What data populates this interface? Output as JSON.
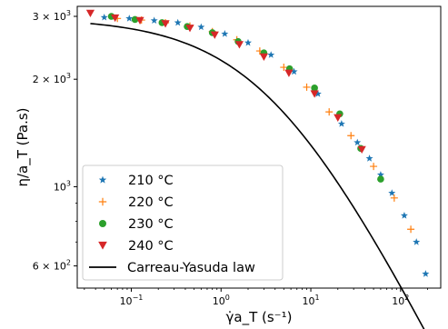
{
  "chart_data": {
    "type": "scatter",
    "xscale": "log",
    "yscale": "log",
    "xlim": [
      0.025,
      280
    ],
    "ylim": [
      520,
      3200
    ],
    "xlabel": "γ̇a_T (s⁻¹)",
    "ylabel": "η/a_T (Pa.s)",
    "x_ticks": [
      {
        "value": 0.1,
        "base": "10",
        "exp": "−1"
      },
      {
        "value": 1,
        "base": "10",
        "exp": "0"
      },
      {
        "value": 10,
        "base": "10",
        "exp": "1"
      },
      {
        "value": 100,
        "base": "10",
        "exp": "2"
      }
    ],
    "y_ticks": [
      {
        "value": 3000,
        "mant": "3 × 10",
        "exp": "3"
      },
      {
        "value": 2000,
        "mant": "2 × 10",
        "exp": "3"
      },
      {
        "value": 1000,
        "mant": "10",
        "exp": "3"
      },
      {
        "value": 600,
        "mant": "6 × 10",
        "exp": "2"
      }
    ],
    "series": [
      {
        "name": "210 °C",
        "marker": "star",
        "color": "#1f77b4",
        "x": [
          0.05,
          0.095,
          0.18,
          0.33,
          0.6,
          1.1,
          2.0,
          3.6,
          6.5,
          12,
          22,
          33,
          45,
          60,
          80,
          110,
          150,
          190
        ],
        "y": [
          2980,
          2960,
          2920,
          2880,
          2800,
          2680,
          2530,
          2340,
          2100,
          1820,
          1500,
          1330,
          1200,
          1080,
          960,
          830,
          700,
          570
        ]
      },
      {
        "name": "220 °C",
        "marker": "plus",
        "color": "#ff7f0e",
        "x": [
          0.07,
          0.13,
          0.24,
          0.45,
          0.8,
          1.5,
          2.7,
          5.0,
          9.0,
          16,
          28,
          50,
          85,
          130
        ],
        "y": [
          2960,
          2930,
          2880,
          2820,
          2720,
          2580,
          2400,
          2160,
          1900,
          1620,
          1390,
          1140,
          930,
          760
        ]
      },
      {
        "name": "230 °C",
        "marker": "circle",
        "color": "#2ca02c",
        "x": [
          0.06,
          0.11,
          0.22,
          0.42,
          0.8,
          1.55,
          3.0,
          5.8,
          11,
          21,
          36,
          60
        ],
        "y": [
          3000,
          2940,
          2880,
          2810,
          2700,
          2550,
          2370,
          2140,
          1890,
          1600,
          1280,
          1050
        ]
      },
      {
        "name": "240 °C",
        "marker": "triangle",
        "color": "#d62728",
        "x": [
          0.035,
          0.066,
          0.125,
          0.24,
          0.45,
          0.85,
          1.6,
          3.0,
          5.7,
          11,
          20,
          37
        ],
        "y": [
          3060,
          2970,
          2920,
          2860,
          2780,
          2660,
          2500,
          2310,
          2080,
          1820,
          1560,
          1270
        ]
      }
    ],
    "model": {
      "name": "Carreau-Yasuda law",
      "color": "#000000",
      "eta0": 2970,
      "lambda": 0.27,
      "a": 0.65,
      "n": 0.5
    }
  }
}
